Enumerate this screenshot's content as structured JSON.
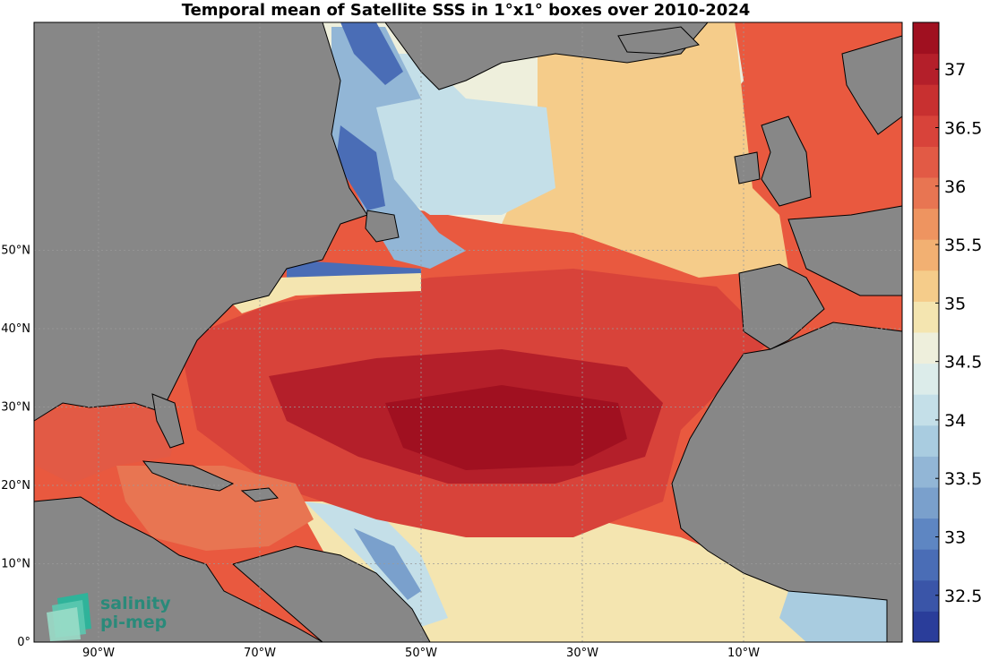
{
  "title": "Temporal mean of Satellite SSS in 1°x1° boxes over 2010-2024",
  "lat_ticks": [
    {
      "label": "0°",
      "lat": 0
    },
    {
      "label": "10°N",
      "lat": 10
    },
    {
      "label": "20°N",
      "lat": 20
    },
    {
      "label": "30°N",
      "lat": 30
    },
    {
      "label": "40°N",
      "lat": 40
    },
    {
      "label": "50°N",
      "lat": 50
    }
  ],
  "lon_ticks": [
    {
      "label": "90°W",
      "lon": -90
    },
    {
      "label": "70°W",
      "lon": -70
    },
    {
      "label": "50°W",
      "lon": -50
    },
    {
      "label": "30°W",
      "lon": -30
    },
    {
      "label": "10°W",
      "lon": -10
    }
  ],
  "colorbar": {
    "min": 32.1,
    "max": 37.4,
    "ticks": [
      "32.5",
      "33",
      "33.5",
      "34",
      "34.5",
      "35",
      "35.5",
      "36",
      "36.5",
      "37"
    ],
    "colors": [
      "#2a3d9a",
      "#3a55a8",
      "#4a6db6",
      "#5e86c2",
      "#7aa0cc",
      "#92b6d6",
      "#a9cce0",
      "#c4dfe8",
      "#dcecea",
      "#eeefdc",
      "#f4e5b0",
      "#f5cc8a",
      "#f2b072",
      "#ee9460",
      "#e87552",
      "#e25a45",
      "#d8433a",
      "#c83030",
      "#b41f2a",
      "#a01020"
    ]
  },
  "logo": {
    "line1": "salinity",
    "line2": "pi-mep"
  },
  "colors": {
    "land": "#878787",
    "ocean_nodata": "#ffffff"
  }
}
